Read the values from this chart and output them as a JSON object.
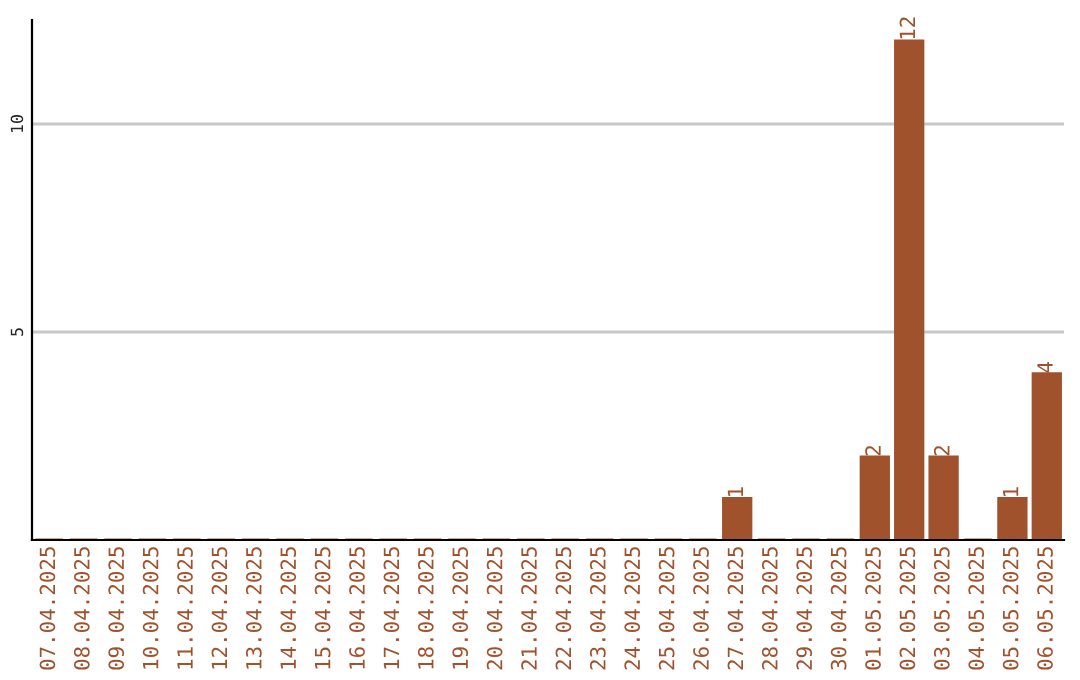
{
  "chart_data": {
    "type": "bar",
    "categories": [
      "07.04.2025",
      "08.04.2025",
      "09.04.2025",
      "10.04.2025",
      "11.04.2025",
      "12.04.2025",
      "13.04.2025",
      "14.04.2025",
      "15.04.2025",
      "16.04.2025",
      "17.04.2025",
      "18.04.2025",
      "19.04.2025",
      "20.04.2025",
      "21.04.2025",
      "22.04.2025",
      "23.04.2025",
      "24.04.2025",
      "25.04.2025",
      "26.04.2025",
      "27.04.2025",
      "28.04.2025",
      "29.04.2025",
      "30.04.2025",
      "01.05.2025",
      "02.05.2025",
      "03.05.2025",
      "04.05.2025",
      "05.05.2025",
      "06.05.2025"
    ],
    "values": [
      0,
      0,
      0,
      0,
      0,
      0,
      0,
      0,
      0,
      0,
      0,
      0,
      0,
      0,
      0,
      0,
      0,
      0,
      0,
      0,
      1,
      0,
      0,
      0,
      2,
      12,
      2,
      0,
      1,
      4
    ],
    "value_labels": [
      null,
      null,
      null,
      null,
      null,
      null,
      null,
      null,
      null,
      null,
      null,
      null,
      null,
      null,
      null,
      null,
      null,
      null,
      null,
      null,
      "1",
      null,
      null,
      null,
      "2",
      "12",
      "2",
      null,
      "1",
      "4"
    ],
    "color": "#a0522d",
    "ylim": [
      0,
      12.5
    ],
    "yticks": [
      5,
      10
    ],
    "grid": "y"
  }
}
